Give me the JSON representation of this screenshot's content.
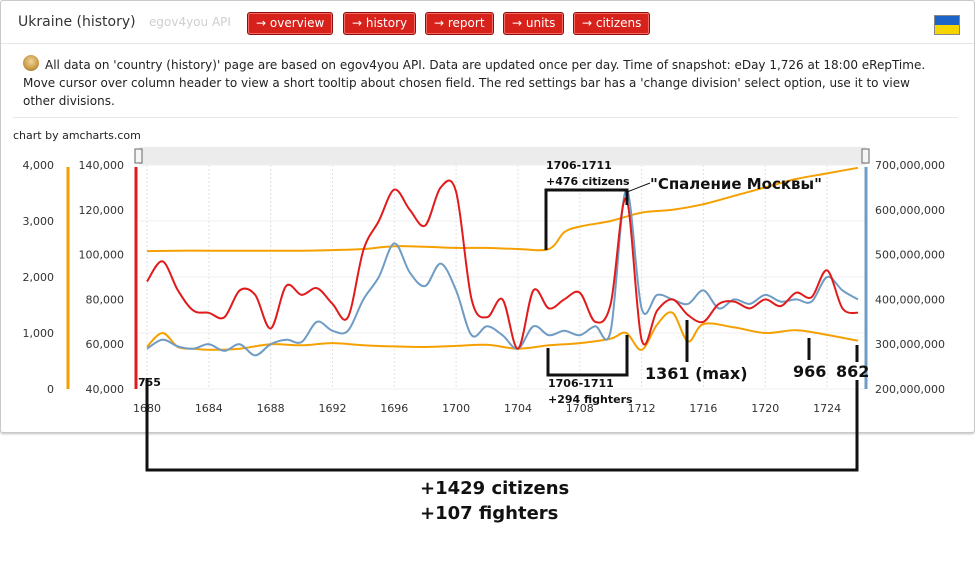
{
  "header": {
    "title": "Ukraine (history)",
    "subtitle": "egov4you API",
    "nav": [
      "→ overview",
      "→ history",
      "→ report",
      "→ units",
      "→ citizens"
    ],
    "flag_colors": [
      "#1d64c9",
      "#f5d400"
    ]
  },
  "info": {
    "icon": "info-avatar-icon",
    "text": "All data on 'country (history)' page are based on egov4you API. Data are updated once per day. Time of snapshot: eDay 1,726 at 18:00 eRepTime. Move cursor over column header to view a short tooltip about chosen field. The red settings bar has a 'change division' select option, use it to view other divisions."
  },
  "chart_credit": "chart by amcharts.com",
  "chart_data": {
    "type": "line",
    "x_ticks": [
      "1680",
      "1684",
      "1688",
      "1692",
      "1696",
      "1700",
      "1704",
      "1708",
      "1712",
      "1716",
      "1720",
      "1724"
    ],
    "xlim": [
      1680,
      1726
    ],
    "axes": {
      "left1": {
        "ticks": [
          "0",
          "1,000",
          "2,000",
          "3,000",
          "4,000"
        ],
        "ylim": [
          0,
          4000
        ],
        "color": "#f5a000"
      },
      "left2": {
        "ticks": [
          "40,000",
          "60,000",
          "80,000",
          "100,000",
          "120,000",
          "140,000"
        ],
        "ylim": [
          40000,
          140000
        ],
        "color": "#e11b1b"
      },
      "right": {
        "ticks": [
          "200,000,000",
          "300,000,000",
          "400,000,000",
          "500,000,000",
          "600,000,000",
          "700,000,000"
        ],
        "ylim": [
          200000000,
          700000000
        ],
        "color": "#6f9cc4"
      }
    },
    "series": [
      {
        "axis": "left1",
        "color": "#f5a000",
        "x": [
          1680,
          1682,
          1684,
          1686,
          1688,
          1690,
          1692,
          1694,
          1696,
          1698,
          1700,
          1702,
          1704,
          1706,
          1707,
          1708,
          1710,
          1712,
          1714,
          1716,
          1718,
          1720,
          1722,
          1724,
          1726
        ],
        "values": [
          2463,
          2470,
          2470,
          2470,
          2470,
          2470,
          2480,
          2500,
          2550,
          2540,
          2520,
          2520,
          2500,
          2500,
          2800,
          2900,
          3000,
          3150,
          3200,
          3300,
          3450,
          3600,
          3750,
          3850,
          3950
        ]
      },
      {
        "axis": "left1",
        "color": "#f5a000",
        "x": [
          1680,
          1681,
          1682,
          1683,
          1684,
          1686,
          1688,
          1690,
          1692,
          1694,
          1696,
          1698,
          1700,
          1702,
          1704,
          1706,
          1708,
          1710,
          1711,
          1712,
          1713,
          1714,
          1715,
          1716,
          1718,
          1720,
          1722,
          1724,
          1726
        ],
        "values": [
          755,
          1000,
          750,
          720,
          700,
          720,
          800,
          780,
          820,
          780,
          760,
          750,
          770,
          790,
          720,
          780,
          820,
          900,
          1000,
          700,
          1150,
          1361,
          850,
          1160,
          1100,
          1000,
          1050,
          966,
          862
        ]
      },
      {
        "axis": "left2",
        "color": "#e11b1b",
        "x": [
          1680,
          1681,
          1682,
          1683,
          1684,
          1685,
          1686,
          1687,
          1688,
          1689,
          1690,
          1691,
          1692,
          1693,
          1694,
          1695,
          1696,
          1697,
          1698,
          1699,
          1700,
          1701,
          1702,
          1703,
          1704,
          1705,
          1706,
          1707,
          1708,
          1709,
          1710,
          1711,
          1712,
          1713,
          1714,
          1715,
          1716,
          1717,
          1718,
          1719,
          1720,
          1721,
          1722,
          1723,
          1724,
          1725,
          1726
        ],
        "values": [
          88000,
          97000,
          84000,
          75000,
          74000,
          72000,
          84000,
          82000,
          67000,
          86000,
          82000,
          85000,
          78000,
          72000,
          102000,
          115000,
          129000,
          120000,
          113000,
          130000,
          128000,
          80000,
          72000,
          80000,
          58000,
          84000,
          76000,
          80000,
          83000,
          70000,
          78000,
          125000,
          62000,
          75000,
          80000,
          73000,
          70000,
          78000,
          79000,
          76000,
          80000,
          77000,
          83000,
          81000,
          93000,
          76000,
          74000
        ]
      },
      {
        "axis": "right",
        "color": "#6f9cc4",
        "x": [
          1680,
          1681,
          1682,
          1683,
          1684,
          1685,
          1686,
          1687,
          1688,
          1689,
          1690,
          1691,
          1692,
          1693,
          1694,
          1695,
          1696,
          1697,
          1698,
          1699,
          1700,
          1701,
          1702,
          1703,
          1704,
          1705,
          1706,
          1707,
          1708,
          1709,
          1710,
          1711,
          1712,
          1713,
          1714,
          1715,
          1716,
          1717,
          1718,
          1719,
          1720,
          1721,
          1722,
          1723,
          1724,
          1725,
          1726
        ],
        "values": [
          290000000,
          310000000,
          295000000,
          290000000,
          300000000,
          285000000,
          300000000,
          275000000,
          300000000,
          310000000,
          305000000,
          350000000,
          330000000,
          330000000,
          400000000,
          450000000,
          525000000,
          460000000,
          430000000,
          480000000,
          420000000,
          320000000,
          340000000,
          320000000,
          290000000,
          340000000,
          320000000,
          330000000,
          320000000,
          340000000,
          330000000,
          645000000,
          380000000,
          410000000,
          400000000,
          390000000,
          420000000,
          380000000,
          400000000,
          390000000,
          410000000,
          395000000,
          400000000,
          395000000,
          450000000,
          420000000,
          400000000
        ]
      }
    ]
  },
  "annotations": {
    "top_bracket_label_1": "1706-1711",
    "top_bracket_label_2": "+476 citizens",
    "burning_label": "\"Спаление Москвы\"",
    "bottom_bracket_label_1": "1706-1711",
    "bottom_bracket_label_2": "+294 fighters",
    "start_label": "755",
    "max_label": "1361 (max)",
    "label_966": "966",
    "label_862": "862",
    "summary_1": "+1429 citizens",
    "summary_2": "+107 fighters"
  }
}
